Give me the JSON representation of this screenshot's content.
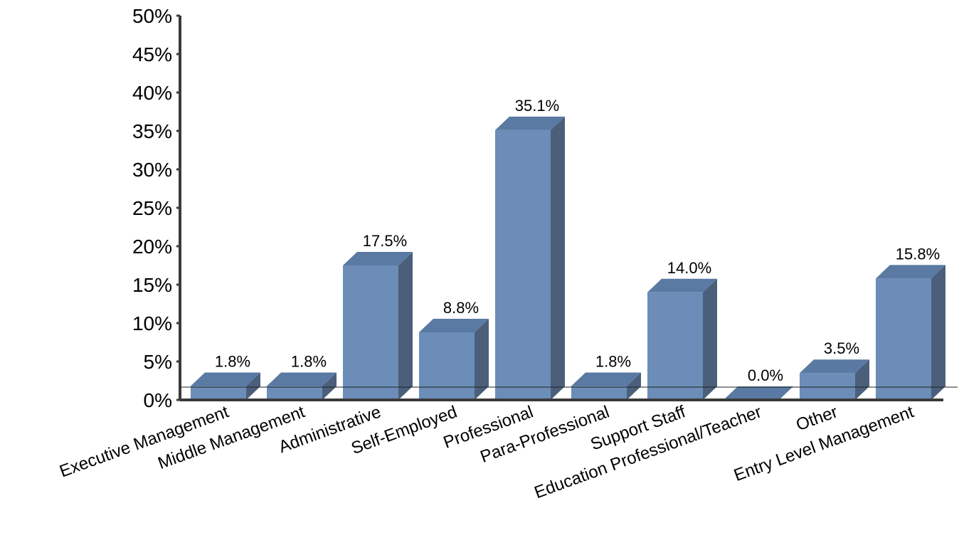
{
  "chart_data": {
    "type": "bar",
    "categories": [
      "Executive Management",
      "Middle Management",
      "Administrative",
      "Self-Employed",
      "Professional",
      "Para-Professional",
      "Support Staff",
      "Education Professional/Teacher",
      "Other",
      "Entry Level Management"
    ],
    "values": [
      1.8,
      1.8,
      17.5,
      8.8,
      35.1,
      1.8,
      14.0,
      0.0,
      3.5,
      15.8
    ],
    "data_labels": [
      "1.8%",
      "1.8%",
      "17.5%",
      "8.8%",
      "35.1%",
      "1.8%",
      "14.0%",
      "0.0%",
      "3.5%",
      "15.8%"
    ],
    "y_ticks": [
      "0%",
      "5%",
      "10%",
      "15%",
      "20%",
      "25%",
      "30%",
      "35%",
      "40%",
      "45%",
      "50%"
    ],
    "ylim": [
      0,
      50
    ],
    "title": "",
    "xlabel": "",
    "ylabel": "",
    "style": "3d",
    "colors": {
      "front": "#6b8db8",
      "top": "#5a79a3",
      "side": "#4b5f7b"
    }
  }
}
